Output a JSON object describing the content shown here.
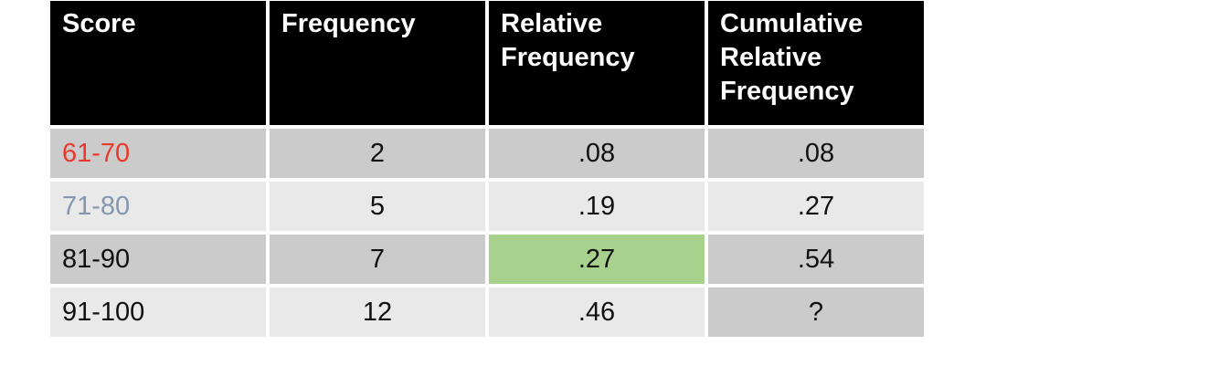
{
  "table": {
    "header": {
      "score": "Score",
      "frequency": "Frequency",
      "relative_frequency": "Relative Frequency",
      "cumulative_relative_frequency": "Cumulative Relative Frequency"
    },
    "rows": [
      {
        "score": "61-70",
        "frequency": "2",
        "relative_frequency": ".08",
        "cumulative_relative_frequency": ".08"
      },
      {
        "score": "71-80",
        "frequency": "5",
        "relative_frequency": ".19",
        "cumulative_relative_frequency": ".27"
      },
      {
        "score": "81-90",
        "frequency": "7",
        "relative_frequency": ".27",
        "cumulative_relative_frequency": ".54"
      },
      {
        "score": "91-100",
        "frequency": "12",
        "relative_frequency": ".46",
        "cumulative_relative_frequency": "?"
      }
    ]
  },
  "colors": {
    "header_bg": "#000000",
    "header_text": "#ffffff",
    "row_dark_bg": "#cbcbcb",
    "row_light_bg": "#e9e9e9",
    "highlight_green_bg": "#a9d18e",
    "score_red_text": "#e8392b",
    "score_blue_text": "#8496b0"
  },
  "chart_data": {
    "type": "table",
    "columns": [
      "Score",
      "Frequency",
      "Relative Frequency",
      "Cumulative Relative Frequency"
    ],
    "rows": [
      [
        "61-70",
        2,
        0.08,
        0.08
      ],
      [
        "71-80",
        5,
        0.19,
        0.27
      ],
      [
        "81-90",
        7,
        0.27,
        0.54
      ],
      [
        "91-100",
        12,
        0.46,
        "?"
      ]
    ],
    "annotations": {
      "red_label_row": "61-70",
      "blue_label_row": "71-80",
      "highlighted_cell": {
        "row": "81-90",
        "column": "Relative Frequency",
        "value": 0.27,
        "highlight_color": "#a9d18e"
      },
      "unknown_cell": {
        "row": "91-100",
        "column": "Cumulative Relative Frequency",
        "value": "?"
      }
    }
  }
}
